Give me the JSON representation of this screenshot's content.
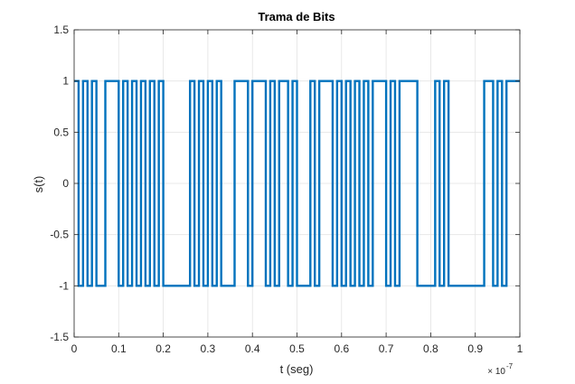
{
  "chart_data": {
    "type": "line",
    "title": "Trama de Bits",
    "xlabel": "t (seg)",
    "ylabel": "s(t)",
    "x_exponent_base": "× 10",
    "x_exponent_power": "-7",
    "xlim": [
      0,
      1
    ],
    "ylim": [
      -1.5,
      1.5
    ],
    "x_scale_factor": 1e-07,
    "xticks": [
      0,
      0.1,
      0.2,
      0.3,
      0.4,
      0.5,
      0.6,
      0.7,
      0.8,
      0.9,
      1
    ],
    "xtick_labels": [
      "0",
      "0.1",
      "0.2",
      "0.3",
      "0.4",
      "0.5",
      "0.6",
      "0.7",
      "0.8",
      "0.9",
      "1"
    ],
    "yticks": [
      -1.5,
      -1,
      -0.5,
      0,
      0.5,
      1,
      1.5
    ],
    "ytick_labels": [
      "-1.5",
      "-1",
      "-0.5",
      "0",
      "0.5",
      "1",
      "1.5"
    ],
    "grid": true,
    "line_color": "#0072BD",
    "bit_period": 0.01,
    "bits": [
      1,
      0,
      1,
      0,
      1,
      0,
      0,
      1,
      1,
      1,
      0,
      1,
      0,
      1,
      0,
      1,
      0,
      1,
      0,
      1,
      0,
      0,
      0,
      0,
      0,
      0,
      1,
      0,
      1,
      0,
      1,
      0,
      1,
      0,
      0,
      0,
      1,
      1,
      1,
      0,
      1,
      1,
      1,
      0,
      1,
      0,
      1,
      1,
      0,
      1,
      0,
      0,
      0,
      1,
      0,
      1,
      1,
      1,
      0,
      1,
      0,
      1,
      0,
      1,
      0,
      1,
      0,
      1,
      1,
      1,
      0,
      1,
      0,
      1,
      1,
      1,
      1,
      0,
      0,
      0,
      0,
      1,
      0,
      1,
      0,
      0,
      0,
      0,
      0,
      0,
      0,
      0,
      1,
      1,
      0,
      1,
      0,
      1,
      1,
      1
    ]
  }
}
